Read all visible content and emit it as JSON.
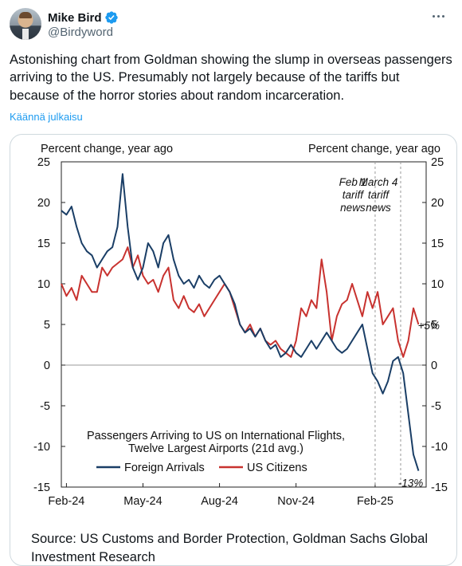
{
  "author": {
    "name": "Mike Bird",
    "handle": "@Birdyword",
    "verified_icon": "verified-badge-icon",
    "avatar_icon": "avatar-image"
  },
  "menu_icon": "more-dots-icon",
  "tweet": {
    "text": "Astonishing chart from Goldman showing the slump in overseas passengers arriving to the US. Presumably not largely because of the tariffs but because of the horror stories about random incarceration.",
    "translate_label": "Käännä julkaisu"
  },
  "card": {
    "source": "Source: US Customs and Border Protection, Goldman Sachs Global Investment Research"
  },
  "colors": {
    "foreign": "#1a3e66",
    "us_citizens": "#c8322f",
    "link": "#1d9bf0",
    "verified": "#1d9bf0"
  },
  "chart_data": {
    "type": "line",
    "title": "Passengers Arriving to US on International Flights, Twelve Largest Airports (21d avg.)",
    "title_line1": "Passengers Arriving to US on International Flights,",
    "title_line2": "Twelve Largest Airports (21d avg.)",
    "ylabel_left": "Percent change, year ago",
    "ylabel_right": "Percent change, year ago",
    "ylim": [
      -15,
      25
    ],
    "yticks": [
      "25",
      "20",
      "15",
      "10",
      "5",
      "0",
      "-5",
      "-10",
      "-15"
    ],
    "xticks": [
      "Feb-24",
      "May-24",
      "Aug-24",
      "Nov-24",
      "Feb-25"
    ],
    "x_unit": "months since Jan-2024 end",
    "grid": false,
    "legend_position": "bottom-left",
    "annotations": [
      {
        "lines": [
          "Feb 1",
          "tariff",
          "news"
        ]
      },
      {
        "lines": [
          "March 4",
          "tariff",
          "news"
        ]
      }
    ],
    "end_labels": {
      "us_citizens": "+5%",
      "foreign": "-13%"
    },
    "series": [
      {
        "name": "Foreign Arrivals",
        "x": [
          0,
          0.2,
          0.4,
          0.6,
          0.8,
          1.0,
          1.2,
          1.4,
          1.6,
          1.8,
          2.0,
          2.2,
          2.4,
          2.6,
          2.8,
          3.0,
          3.2,
          3.4,
          3.6,
          3.8,
          4.0,
          4.2,
          4.4,
          4.6,
          4.8,
          5.0,
          5.2,
          5.4,
          5.6,
          5.8,
          6.0,
          6.2,
          6.4,
          6.6,
          6.8,
          7.0,
          7.2,
          7.4,
          7.6,
          7.8,
          8.0,
          8.2,
          8.4,
          8.6,
          8.8,
          9.0,
          9.2,
          9.4,
          9.6,
          9.8,
          10.0,
          10.2,
          10.4,
          10.6,
          10.8,
          11.0,
          11.2,
          11.4,
          11.6,
          11.8,
          12.0,
          12.2,
          12.4,
          12.6,
          12.8,
          13.0,
          13.2,
          13.4,
          13.6,
          13.8,
          14.0
        ],
        "values": [
          19,
          18.5,
          19.5,
          17,
          15,
          14,
          13.5,
          12,
          13,
          14,
          14.5,
          17,
          23.5,
          17,
          12,
          10.5,
          12,
          15,
          14,
          12,
          15,
          16,
          13,
          11,
          10,
          10.5,
          9.5,
          11,
          10,
          9.5,
          10.5,
          11,
          10,
          9,
          7.5,
          5,
          4,
          4.5,
          3.5,
          4.5,
          3,
          2,
          2.5,
          1,
          1.5,
          2.5,
          1.5,
          1,
          2,
          3,
          2,
          3,
          4,
          3,
          2,
          1.5,
          2,
          3,
          4,
          5,
          2,
          -1,
          -2,
          -3.5,
          -2,
          0.5,
          1,
          -1,
          -6,
          -11,
          -13
        ]
      },
      {
        "name": "US Citizens",
        "x": [
          0,
          0.2,
          0.4,
          0.6,
          0.8,
          1.0,
          1.2,
          1.4,
          1.6,
          1.8,
          2.0,
          2.2,
          2.4,
          2.6,
          2.8,
          3.0,
          3.2,
          3.4,
          3.6,
          3.8,
          4.0,
          4.2,
          4.4,
          4.6,
          4.8,
          5.0,
          5.2,
          5.4,
          5.6,
          5.8,
          6.0,
          6.2,
          6.4,
          6.6,
          6.8,
          7.0,
          7.2,
          7.4,
          7.6,
          7.8,
          8.0,
          8.2,
          8.4,
          8.6,
          8.8,
          9.0,
          9.2,
          9.4,
          9.6,
          9.8,
          10.0,
          10.2,
          10.4,
          10.6,
          10.8,
          11.0,
          11.2,
          11.4,
          11.6,
          11.8,
          12.0,
          12.2,
          12.4,
          12.6,
          12.8,
          13.0,
          13.2,
          13.4,
          13.6,
          13.8,
          14.0
        ],
        "values": [
          10,
          8.5,
          9.5,
          8,
          11,
          10,
          9,
          9,
          12,
          11,
          12,
          12.5,
          13,
          14.5,
          12,
          13.5,
          11,
          10,
          10.5,
          9,
          11,
          12,
          8,
          7,
          8.5,
          7,
          6.5,
          7.5,
          6,
          7,
          8,
          9,
          10,
          9,
          7,
          5,
          4,
          5,
          3.5,
          4.5,
          3,
          2.5,
          3,
          2,
          1.5,
          1,
          3,
          7,
          6,
          8,
          7,
          13,
          9,
          3,
          6,
          7.5,
          8,
          10,
          8,
          6,
          9,
          7,
          9,
          5,
          6,
          7,
          3,
          1,
          3,
          7,
          5
        ]
      }
    ]
  }
}
